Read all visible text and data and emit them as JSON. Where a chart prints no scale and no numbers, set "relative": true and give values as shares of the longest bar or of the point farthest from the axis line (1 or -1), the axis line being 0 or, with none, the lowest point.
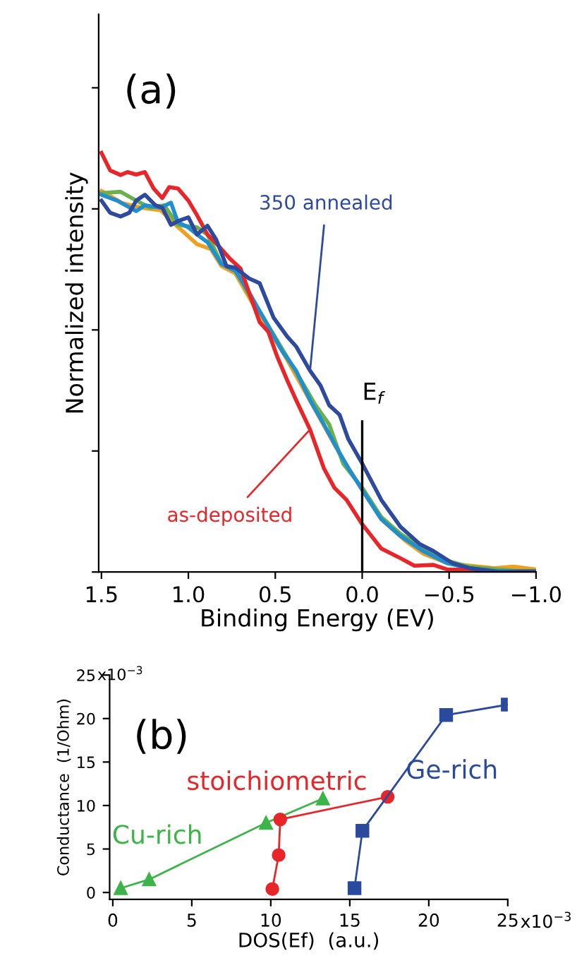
{
  "chart_data": [
    {
      "type": "line",
      "relative": true,
      "annotations": [
        "(a)"
      ],
      "xlabel": "Binding Energy (EV)",
      "ylabel": "Normalized intensity",
      "xlim": [
        1.516,
        -1.0
      ],
      "xticks": [
        {
          "value": 1.5,
          "label": "1.5"
        },
        {
          "value": 1.0,
          "label": "1.0"
        },
        {
          "value": 0.5,
          "label": "0.5"
        },
        {
          "value": 0.0,
          "label": "0.0"
        },
        {
          "value": -0.5,
          "label": "−0.5"
        },
        {
          "value": -1.0,
          "label": "−1.0"
        }
      ],
      "tick_labels": "x",
      "grid": false,
      "legend": false,
      "marker": "none",
      "line_style": "solid",
      "ref_lines": [
        {
          "axis": "x",
          "value": 0.0,
          "label": "E$_{f}$",
          "color": "#000000"
        }
      ],
      "series": [
        {
          "color": "#f0a020",
          "x": [
            1.5,
            1.38,
            1.27,
            1.16,
            1.06,
            0.95,
            0.87,
            0.81,
            0.73,
            0.65,
            0.57,
            0.46,
            0.35,
            0.24,
            0.13,
            0.0,
            -0.11,
            -0.25,
            -0.35,
            -0.49,
            -0.62,
            -0.76,
            -0.87,
            -1.0
          ],
          "values": [
            0.909,
            0.88,
            0.869,
            0.863,
            0.823,
            0.782,
            0.77,
            0.73,
            0.712,
            0.655,
            0.596,
            0.527,
            0.446,
            0.364,
            0.282,
            0.196,
            0.126,
            0.074,
            0.044,
            0.021,
            0.015,
            0.009,
            0.013,
            0.006
          ]
        },
        {
          "color": "#6ab04c",
          "x": [
            1.5,
            1.39,
            1.3,
            1.22,
            1.14,
            1.06,
            0.95,
            0.89,
            0.81,
            0.73,
            0.65,
            0.57,
            0.46,
            0.35,
            0.27,
            0.19,
            0.11,
            0.0,
            -0.11,
            -0.22,
            -0.35,
            -0.49,
            -0.62,
            -0.76,
            -0.9,
            -1.0
          ],
          "values": [
            0.904,
            0.907,
            0.886,
            0.869,
            0.875,
            0.828,
            0.822,
            0.805,
            0.735,
            0.724,
            0.66,
            0.608,
            0.532,
            0.456,
            0.399,
            0.352,
            0.259,
            0.201,
            0.131,
            0.091,
            0.056,
            0.027,
            0.012,
            0.007,
            0.003,
            0.003
          ]
        },
        {
          "color": "#1f8fd0",
          "x": [
            1.5,
            1.41,
            1.3,
            1.25,
            1.16,
            1.1,
            1.06,
            1.0,
            0.95,
            0.89,
            0.81,
            0.73,
            0.65,
            0.57,
            0.46,
            0.38,
            0.3,
            0.22,
            0.16,
            0.08,
            0.0,
            -0.11,
            -0.22,
            -0.35,
            -0.49,
            -0.62,
            -0.76,
            -0.9,
            -1.0
          ],
          "values": [
            0.9,
            0.886,
            0.861,
            0.875,
            0.869,
            0.881,
            0.834,
            0.822,
            0.805,
            0.787,
            0.735,
            0.718,
            0.666,
            0.608,
            0.527,
            0.48,
            0.41,
            0.352,
            0.306,
            0.248,
            0.196,
            0.126,
            0.086,
            0.05,
            0.021,
            0.009,
            0.003,
            0.001,
            0.001
          ]
        },
        {
          "name": "as-deposited",
          "color": "#e8262a",
          "x": [
            1.5,
            1.45,
            1.39,
            1.35,
            1.3,
            1.25,
            1.2,
            1.15,
            1.11,
            1.06,
            1.0,
            0.95,
            0.89,
            0.84,
            0.76,
            0.7,
            0.65,
            0.59,
            0.54,
            0.49,
            0.43,
            0.38,
            0.3,
            0.22,
            0.16,
            0.09,
            0.0,
            -0.11,
            -0.22,
            -0.3,
            -0.41,
            -0.49,
            -0.62,
            -0.73
          ],
          "values": [
            1.0,
            0.958,
            0.947,
            0.954,
            0.948,
            0.954,
            0.915,
            0.892,
            0.918,
            0.915,
            0.886,
            0.851,
            0.805,
            0.784,
            0.747,
            0.724,
            0.666,
            0.596,
            0.573,
            0.515,
            0.456,
            0.41,
            0.34,
            0.247,
            0.201,
            0.172,
            0.114,
            0.056,
            0.033,
            0.015,
            0.017,
            0.006,
            0.006,
            0.0
          ]
        },
        {
          "name": "350 annealed",
          "color": "#2e4a9e",
          "x": [
            1.5,
            1.45,
            1.39,
            1.34,
            1.3,
            1.25,
            1.19,
            1.15,
            1.1,
            1.06,
            1.0,
            0.95,
            0.89,
            0.84,
            0.78,
            0.73,
            0.65,
            0.59,
            0.51,
            0.43,
            0.38,
            0.3,
            0.24,
            0.19,
            0.13,
            0.08,
            0.0,
            -0.11,
            -0.22,
            -0.33,
            -0.41,
            -0.52,
            -0.62,
            -0.79,
            -0.9,
            -1.0
          ],
          "values": [
            0.886,
            0.857,
            0.848,
            0.857,
            0.886,
            0.9,
            0.875,
            0.869,
            0.828,
            0.837,
            0.846,
            0.805,
            0.826,
            0.793,
            0.729,
            0.726,
            0.7,
            0.689,
            0.607,
            0.561,
            0.538,
            0.48,
            0.445,
            0.398,
            0.375,
            0.317,
            0.259,
            0.172,
            0.108,
            0.067,
            0.05,
            0.021,
            0.009,
            0.0,
            0.001,
            0.001
          ]
        }
      ]
    },
    {
      "type": "line",
      "annotations": [
        "(b)",
        "x10$^{−3}$",
        "x10$^{−3}$"
      ],
      "xlabel": "DOS(Ef)  (a.u.)",
      "ylabel": "Conductance  (1/Ohm)",
      "xlim": [
        -0.2,
        25
      ],
      "xticks": [
        0,
        5,
        10,
        15,
        20,
        25
      ],
      "ylim": [
        -0.8,
        25
      ],
      "yticks": [
        0,
        5,
        10,
        15,
        20,
        25
      ],
      "grid": false,
      "legend": false,
      "line_style": "solid",
      "series": [
        {
          "name": "Cu-rich",
          "color": "#3cb44a",
          "marker": "triangle",
          "x": [
            0.5,
            2.3,
            9.7,
            13.3
          ],
          "values": [
            0.5,
            1.5,
            8.0,
            10.8
          ]
        },
        {
          "name": "stoichiometric",
          "color": "#e8262a",
          "marker": "circle",
          "x": [
            10.1,
            10.5,
            10.6,
            17.4
          ],
          "values": [
            0.4,
            4.3,
            8.4,
            11.0
          ]
        },
        {
          "name": "Ge-rich",
          "color": "#2a4a9e",
          "marker": "square",
          "x": [
            15.3,
            15.8,
            21.1,
            25.0
          ],
          "values": [
            0.5,
            7.1,
            20.4,
            21.6
          ]
        }
      ]
    }
  ]
}
